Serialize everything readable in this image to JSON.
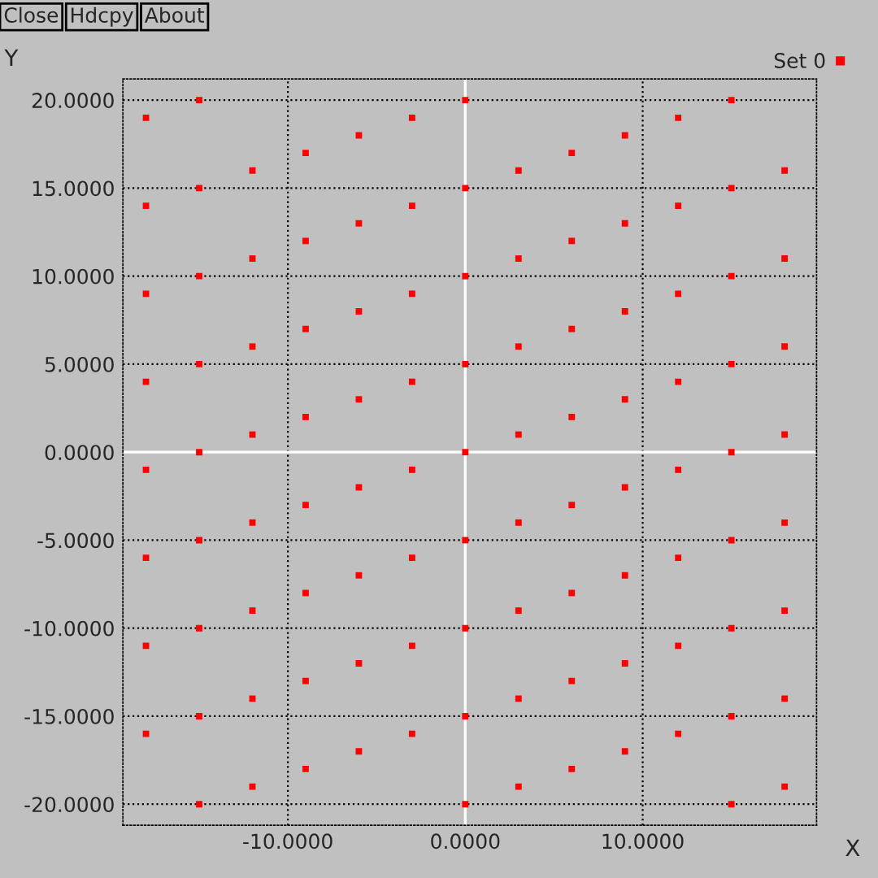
{
  "chart_data": {
    "type": "scatter",
    "xlabel": "X",
    "ylabel": "Y",
    "annotations": [
      "Close",
      "Hdcpy",
      "About"
    ],
    "x": [
      -18,
      -18,
      -18,
      -18,
      -18,
      -18,
      -18,
      -18,
      -15,
      -15,
      -15,
      -15,
      -15,
      -15,
      -15,
      -15,
      -15,
      -12,
      -12,
      -12,
      -12,
      -12,
      -12,
      -12,
      -12,
      -9,
      -9,
      -9,
      -9,
      -9,
      -9,
      -9,
      -9,
      -6,
      -6,
      -6,
      -6,
      -6,
      -6,
      -6,
      -6,
      -3,
      -3,
      -3,
      -3,
      -3,
      -3,
      -3,
      -3,
      0,
      0,
      0,
      0,
      0,
      0,
      0,
      0,
      0,
      3,
      3,
      3,
      3,
      3,
      3,
      3,
      3,
      6,
      6,
      6,
      6,
      6,
      6,
      6,
      6,
      9,
      9,
      9,
      9,
      9,
      9,
      9,
      9,
      12,
      12,
      12,
      12,
      12,
      12,
      12,
      12,
      15,
      15,
      15,
      15,
      15,
      15,
      15,
      15,
      15,
      18,
      18,
      18,
      18,
      18,
      18,
      18,
      18
    ],
    "series": [
      {
        "name": "Set 0",
        "color": "#ff0000",
        "values": [
          19,
          14,
          9,
          4,
          -1,
          -6,
          -11,
          -16,
          20,
          15,
          10,
          5,
          0,
          -5,
          -10,
          -15,
          -20,
          16,
          11,
          6,
          1,
          -4,
          -9,
          -14,
          -19,
          17,
          12,
          7,
          2,
          -3,
          -8,
          -13,
          -18,
          18,
          13,
          8,
          3,
          -2,
          -7,
          -12,
          -17,
          19,
          14,
          9,
          4,
          -1,
          -6,
          -11,
          -16,
          20,
          15,
          10,
          5,
          0,
          -5,
          -10,
          -15,
          -20,
          16,
          11,
          6,
          1,
          -4,
          -9,
          -14,
          -19,
          17,
          12,
          7,
          2,
          -3,
          -8,
          -13,
          -18,
          18,
          13,
          8,
          3,
          -2,
          -7,
          -12,
          -17,
          19,
          14,
          9,
          4,
          -1,
          -6,
          -11,
          -16,
          20,
          15,
          10,
          5,
          0,
          -5,
          -10,
          -15,
          -20,
          16,
          11,
          6,
          1,
          -4,
          -9,
          -14,
          -19
        ]
      }
    ],
    "xlim": [
      -19.3,
      19.8
    ],
    "ylim": [
      -21.2,
      21.2
    ],
    "xticks": [
      {
        "value": -10,
        "label": "-10.0000"
      },
      {
        "value": 0,
        "label": "0.0000"
      },
      {
        "value": 10,
        "label": "10.0000"
      }
    ],
    "yticks": [
      {
        "value": -20,
        "label": "-20.0000"
      },
      {
        "value": -15,
        "label": "-15.0000"
      },
      {
        "value": -10,
        "label": "-10.0000"
      },
      {
        "value": -5,
        "label": "-5.0000"
      },
      {
        "value": 0,
        "label": "0.0000"
      },
      {
        "value": 5,
        "label": "5.0000"
      },
      {
        "value": 10,
        "label": "10.0000"
      },
      {
        "value": 15,
        "label": "15.0000"
      },
      {
        "value": 20,
        "label": "20.0000"
      }
    ],
    "grid": true,
    "line_style": "dotted",
    "marker": "square",
    "legend": "top right"
  }
}
